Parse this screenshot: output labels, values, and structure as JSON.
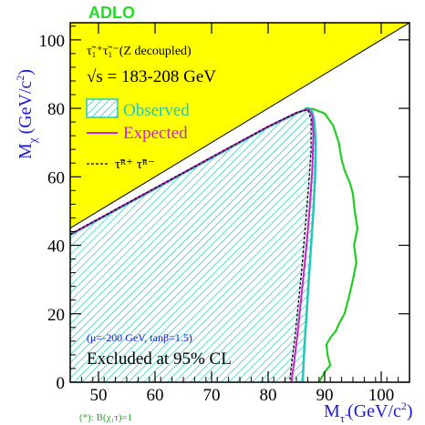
{
  "chart_data": {
    "type": "area",
    "experiment": "ADLO",
    "xlabel_main": "M",
    "xlabel_sub": "τ̃",
    "xlabel_unit": "(GeV/c",
    "xlabel_exp": "2",
    "xlabel_close": ")",
    "ylabel_main": "M",
    "ylabel_sub": "χ",
    "ylabel_unit": "(GeV/c",
    "ylabel_exp": "2",
    "ylabel_close": ")",
    "xlim": [
      45,
      105
    ],
    "ylim": [
      0,
      105
    ],
    "xticks": [
      50,
      60,
      70,
      80,
      90,
      100
    ],
    "yticks": [
      0,
      20,
      40,
      60,
      80,
      100
    ],
    "kinematic_limit": {
      "note": "region M_chi > M_stau, shaded",
      "color": "#ffff00"
    },
    "annotations": {
      "process": "τ̃₁⁺τ̃₁⁻(Z decoupled)",
      "energy": "√s = 183-208 GeV",
      "right_handed": "τ̃ᴿ⁺ τ̃ᴿ⁻",
      "params": "(μ=-200 GeV, tanβ=1.5)",
      "excluded": "Excluded at 95% CL",
      "footnote": "(*): B(χ₁τ)=1"
    },
    "series": [
      {
        "name": "Observed",
        "color": "#20c8b8",
        "x": [
          45,
          50,
          55,
          60,
          65,
          70,
          75,
          80,
          85,
          87,
          87.8,
          88.2,
          88.4,
          88.3,
          88.0,
          87.6,
          87.2,
          86.8,
          86.4,
          86.1
        ],
        "y": [
          43,
          47.5,
          52,
          56.5,
          61,
          65.5,
          70,
          74.5,
          78.5,
          80,
          79,
          76,
          70,
          60,
          50,
          40,
          30,
          20,
          10,
          0
        ]
      },
      {
        "name": "Expected",
        "color": "#cc22cc",
        "x": [
          45,
          50,
          55,
          60,
          65,
          70,
          75,
          80,
          85,
          87,
          87.8,
          88.0,
          87.8,
          87.4,
          86.9,
          86.3,
          85.7,
          85.2,
          84.6,
          84.1
        ],
        "y": [
          43.2,
          47.7,
          52.2,
          56.7,
          61.2,
          65.7,
          70.2,
          74.7,
          78.7,
          79.8,
          78,
          72,
          62,
          52,
          42,
          32,
          22,
          14,
          6,
          0
        ]
      },
      {
        "name": "τ̃R⁺ τ̃R⁻",
        "color": "#000000",
        "x": [
          45,
          50,
          55,
          60,
          65,
          70,
          75,
          80,
          85,
          87,
          87.6,
          87.6,
          87.2,
          86.6,
          86.0,
          85.4,
          84.8,
          84.2,
          83.8
        ],
        "y": [
          43.2,
          47.7,
          52.2,
          56.7,
          61.2,
          65.7,
          70.2,
          74.7,
          78.7,
          79.6,
          77,
          68,
          58,
          46,
          34,
          24,
          14,
          6,
          0
        ]
      }
    ],
    "green_contour": {
      "color": "#22cc22",
      "x": [
        86.5,
        88,
        90,
        91.5,
        92.5,
        93,
        93.5,
        94.5,
        95,
        95.3,
        95.8,
        95.2,
        95.6,
        95.0,
        94.3,
        93.5,
        92.5,
        92,
        91,
        90.3,
        90.5,
        91.0,
        90.0,
        89.5,
        89.0
      ],
      "y": [
        80,
        79.8,
        78.5,
        75,
        70,
        65,
        62,
        58,
        55,
        50,
        45,
        40,
        35,
        30,
        25,
        20,
        17,
        15,
        13,
        11,
        8,
        5,
        3,
        1.5,
        0
      ]
    }
  },
  "legend": {
    "observed": "Observed",
    "expected": "Expected"
  }
}
